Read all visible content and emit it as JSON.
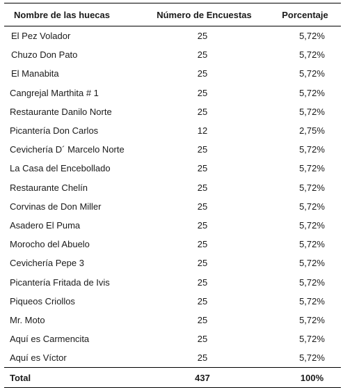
{
  "table": {
    "headers": {
      "name": "Nombre de las huecas",
      "count": "Número de Encuestas",
      "percent": "Porcentaje"
    },
    "rows": [
      {
        "name": "El Pez Volador",
        "count": "25",
        "percent": "5,72%"
      },
      {
        "name": "Chuzo Don Pato",
        "count": "25",
        "percent": "5,72%"
      },
      {
        "name": "El Manabita",
        "count": "25",
        "percent": "5,72%"
      },
      {
        "name": "Cangrejal Marthita # 1",
        "count": "25",
        "percent": "5,72%"
      },
      {
        "name": "Restaurante Danilo Norte",
        "count": "25",
        "percent": "5,72%"
      },
      {
        "name": "Picantería Don Carlos",
        "count": "12",
        "percent": "2,75%"
      },
      {
        "name": "Cevichería D´ Marcelo Norte",
        "count": "25",
        "percent": "5,72%"
      },
      {
        "name": "La Casa del Encebollado",
        "count": "25",
        "percent": "5,72%"
      },
      {
        "name": "Restaurante Chelín",
        "count": "25",
        "percent": "5,72%"
      },
      {
        "name": "Corvinas de Don Miller",
        "count": "25",
        "percent": "5,72%"
      },
      {
        "name": "Asadero El Puma",
        "count": "25",
        "percent": "5,72%"
      },
      {
        "name": "Morocho del Abuelo",
        "count": "25",
        "percent": "5,72%"
      },
      {
        "name": "Cevichería Pepe 3",
        "count": "25",
        "percent": "5,72%"
      },
      {
        "name": "Picantería Fritada de Ivis",
        "count": "25",
        "percent": "5,72%"
      },
      {
        "name": "Piqueos Criollos",
        "count": "25",
        "percent": "5,72%"
      },
      {
        "name": "Mr. Moto",
        "count": "25",
        "percent": "5,72%"
      },
      {
        "name": "Aquí es Carmencita",
        "count": "25",
        "percent": "5,72%"
      },
      {
        "name": "Aquí es Víctor",
        "count": "25",
        "percent": "5,72%"
      }
    ],
    "total": {
      "name": "Total",
      "count": "437",
      "percent": "100%"
    }
  }
}
